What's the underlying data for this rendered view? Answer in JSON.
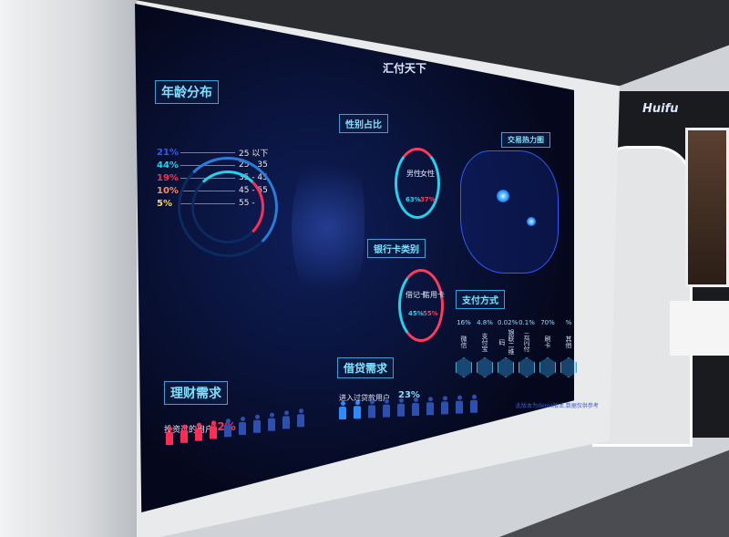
{
  "dashboard": {
    "title": "汇付天下",
    "age": {
      "label": "年龄分布",
      "rows": [
        {
          "pct": "21%",
          "range": "25 以下",
          "color": "#2e5cff"
        },
        {
          "pct": "44%",
          "range": "25 - 35",
          "color": "#22d3ee"
        },
        {
          "pct": "19%",
          "range": "35 - 45",
          "color": "#ff2d55"
        },
        {
          "pct": "10%",
          "range": "45 - 55",
          "color": "#ff8a65"
        },
        {
          "pct": "5%",
          "range": "55 -",
          "color": "#ffd54f"
        }
      ]
    },
    "gender": {
      "label": "性别占比",
      "male_label": "男性",
      "female_label": "女性",
      "male_pct": "63%",
      "female_pct": "37%"
    },
    "card": {
      "label": "银行卡类别",
      "debit_label": "借记卡",
      "credit_label": "信用卡",
      "debit_pct": "45%",
      "credit_pct": "55%"
    },
    "heatmap": {
      "label": "交易热力图"
    },
    "payment": {
      "label": "支付方式",
      "items": [
        {
          "pct": "16%",
          "name": "微信"
        },
        {
          "pct": "4.8%",
          "name": "支付宝"
        },
        {
          "pct": "0.02%",
          "name": "银联二维码"
        },
        {
          "pct": "0.1%",
          "name": "云闪付"
        },
        {
          "pct": "70%",
          "name": "刷卡"
        },
        {
          "pct": "%",
          "name": "其他"
        }
      ]
    },
    "finance": {
      "label": "理财需求",
      "caption": "投资过的用户",
      "pct": "42%"
    },
    "loan": {
      "label": "借贷需求",
      "caption": "进入过贷款用户",
      "pct": "23%"
    },
    "footer": "此版本为demo版本,数据仅供参考"
  },
  "room": {
    "brand": "Huifu"
  }
}
